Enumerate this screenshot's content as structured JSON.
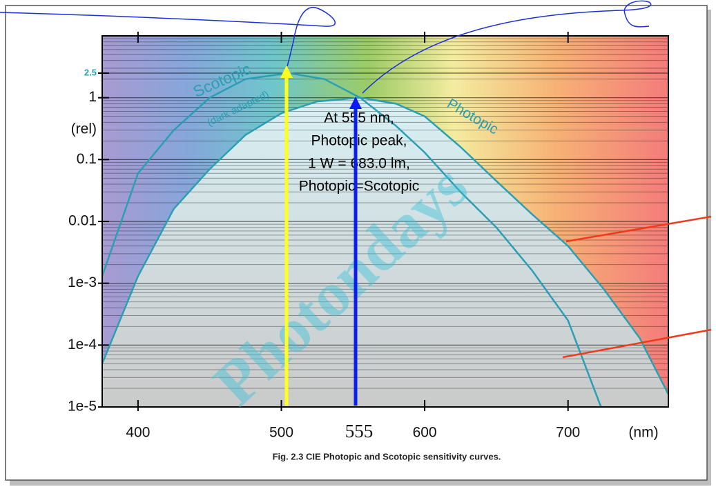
{
  "chart_data": {
    "type": "line",
    "log_y": true,
    "grid": true,
    "minor_grid": true,
    "xlim": [
      375,
      770
    ],
    "ylim": [
      1e-05,
      10
    ],
    "xticks": [
      400,
      500,
      600,
      700
    ],
    "yticks": [
      {
        "value": 1e-05,
        "label": "1e-5"
      },
      {
        "value": 0.0001,
        "label": "1e-4"
      },
      {
        "value": 0.001,
        "label": "1e-3"
      },
      0.01,
      0.1,
      1,
      2.5
    ],
    "x_label": "(nm)",
    "y_label": "(rel)",
    "series": [
      {
        "name": "Photopic",
        "color": "#2a9fb4",
        "x": [
          375,
          400,
          425,
          450,
          475,
          500,
          525,
          555,
          580,
          600,
          625,
          650,
          675,
          700,
          725,
          750,
          770
        ],
        "values": [
          5e-05,
          0.0013,
          0.016,
          0.07,
          0.25,
          0.56,
          0.87,
          1,
          0.8,
          0.5,
          0.16,
          0.045,
          0.013,
          0.004,
          0.0008,
          0.00013,
          1.6e-05
        ]
      },
      {
        "name": "Scotopic",
        "color": "#2a9fb4",
        "x": [
          375,
          400,
          425,
          450,
          475,
          505,
          530,
          555,
          580,
          600,
          625,
          650,
          675,
          700,
          723
        ],
        "values": [
          0.0013,
          0.06,
          0.3,
          1,
          2,
          2.5,
          2,
          1,
          0.35,
          0.13,
          0.03,
          0.008,
          0.0016,
          0.00025,
          1e-05
        ]
      }
    ],
    "scotopic_note": "(dark adapted)",
    "annotation": [
      "At 555 nm,",
      "Photopic peak,",
      "1 W = 683.0 lm,",
      "Photopic=Scotopic"
    ],
    "marker_label": "555",
    "watermark": "Photondays",
    "caption": "Fig. 2.3  CIE Photopic and Scotopic sensitivity curves."
  }
}
